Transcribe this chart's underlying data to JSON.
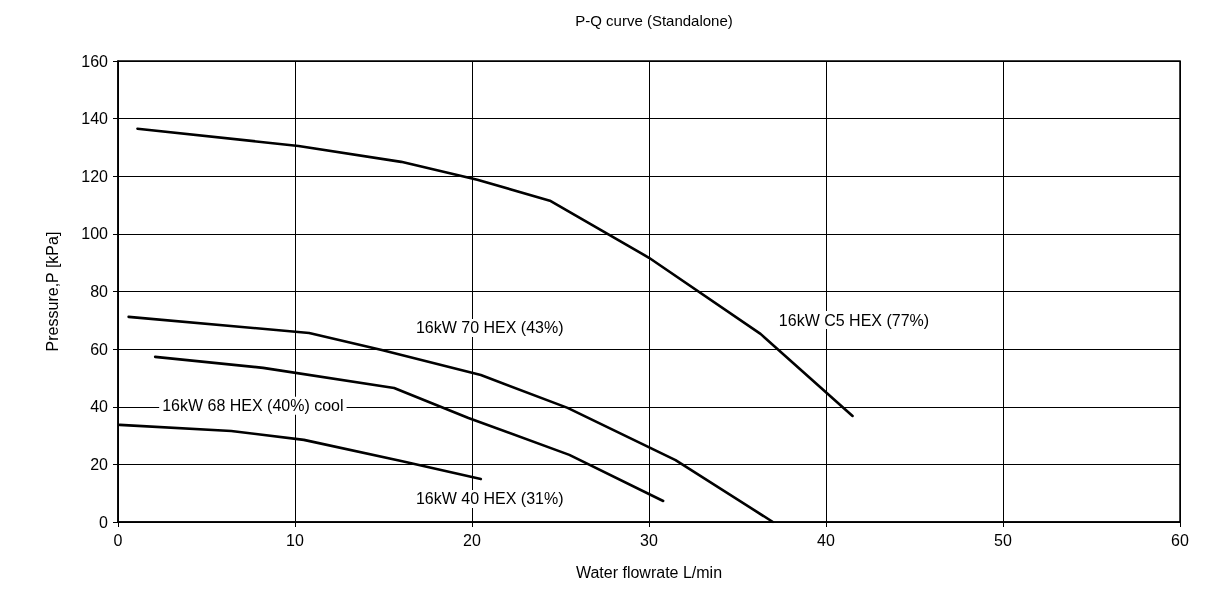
{
  "chart_data": {
    "type": "line",
    "title": "P-Q curve (Standalone)",
    "xlabel": "Water flowrate L/min",
    "ylabel": "Pressure,P [kPa]",
    "xlim": [
      0,
      60
    ],
    "xticks": [
      0,
      10,
      20,
      30,
      40,
      50,
      60
    ],
    "ylim": [
      0,
      160
    ],
    "yticks": [
      0,
      20,
      40,
      60,
      80,
      100,
      120,
      140,
      160
    ],
    "grid": true,
    "marker": "none",
    "line_style": "solid",
    "series": [
      {
        "name": "16kW C5 HEX (77%)",
        "color": "#000000",
        "x": [
          1.1,
          10.2,
          16.0,
          20.3,
          24.4,
          30.0,
          36.3,
          41.5
        ],
        "values": [
          136.5,
          130.5,
          125,
          118.8,
          111.5,
          91.7,
          65.3,
          36.8
        ]
      },
      {
        "name": "16kW 70 HEX (43%)",
        "color": "#000000",
        "x": [
          0.6,
          10.8,
          14.9,
          20.5,
          25.4,
          31.5,
          37.0
        ],
        "values": [
          71.2,
          65.6,
          59.7,
          51,
          39.6,
          21.5,
          0
        ]
      },
      {
        "name": "16kW 68 HEX (40%) cool",
        "color": "#000000",
        "x": [
          2.1,
          8.2,
          15.6,
          19.8,
          25.5,
          30.8
        ],
        "values": [
          57.3,
          53.5,
          46.5,
          36.1,
          23.3,
          7.3
        ]
      },
      {
        "name": "16kW 40 HEX (31%)",
        "color": "#000000",
        "x": [
          0.1,
          6.4,
          10.5,
          16.0,
          20.5
        ],
        "values": [
          33.7,
          31.6,
          28.5,
          21.2,
          14.9
        ]
      }
    ]
  }
}
